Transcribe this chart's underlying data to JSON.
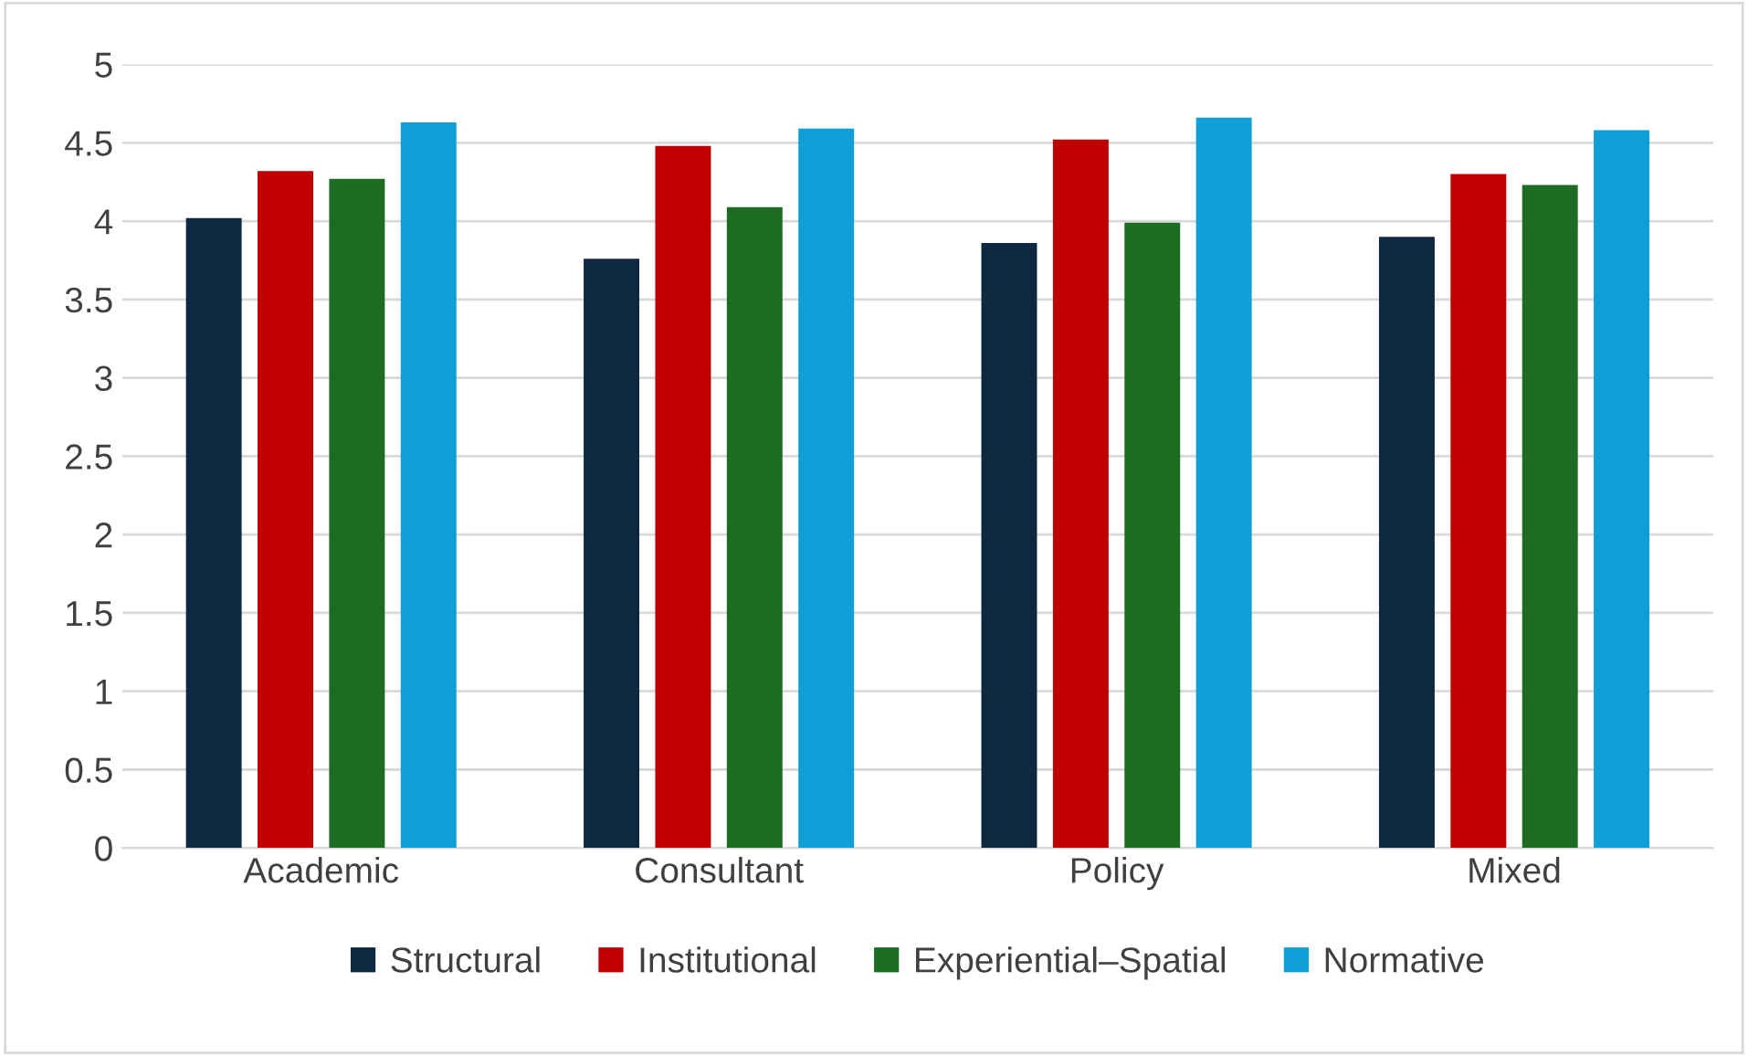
{
  "chart_data": {
    "type": "bar",
    "categories": [
      "Academic",
      "Consultant",
      "Policy",
      "Mixed"
    ],
    "series": [
      {
        "name": "Structural",
        "color": "#0e2841",
        "values": [
          4.02,
          3.76,
          3.86,
          3.9
        ]
      },
      {
        "name": "Institutional",
        "color": "#c00000",
        "values": [
          4.32,
          4.48,
          4.52,
          4.3
        ]
      },
      {
        "name": "Experiential–Spatial",
        "color": "#1e6b24",
        "values": [
          4.27,
          4.09,
          3.99,
          4.23
        ]
      },
      {
        "name": "Normative",
        "color": "#0f9ed5",
        "values": [
          4.63,
          4.59,
          4.66,
          4.58
        ]
      }
    ],
    "ylim": [
      0,
      5
    ],
    "yticks": [
      0,
      0.5,
      1,
      1.5,
      2,
      2.5,
      3,
      3.5,
      4,
      4.5,
      5
    ],
    "grid": "y",
    "legend": "bottom"
  }
}
